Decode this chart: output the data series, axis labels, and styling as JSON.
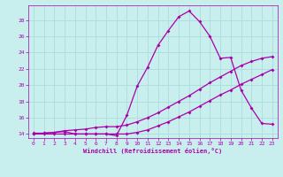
{
  "xlabel": "Windchill (Refroidissement éolien,°C)",
  "bg_color": "#c8eeee",
  "line_color": "#aa00aa",
  "grid_color": "#aadddd",
  "ylim": [
    13.5,
    29.8
  ],
  "xlim": [
    -0.5,
    23.5
  ],
  "yticks": [
    14,
    16,
    18,
    20,
    22,
    24,
    26,
    28
  ],
  "xticks": [
    0,
    1,
    2,
    3,
    4,
    5,
    6,
    7,
    8,
    9,
    10,
    11,
    12,
    13,
    14,
    15,
    16,
    17,
    18,
    19,
    20,
    21,
    22,
    23
  ],
  "line1_x": [
    0,
    1,
    2,
    3,
    4,
    5,
    6,
    7,
    8,
    9,
    10,
    11,
    12,
    13,
    14,
    15,
    16,
    17,
    18,
    19,
    20,
    21,
    22,
    23
  ],
  "line1_y": [
    14.1,
    14.1,
    14.2,
    14.3,
    14.0,
    14.0,
    14.0,
    14.0,
    13.8,
    16.3,
    19.9,
    22.2,
    24.9,
    26.7,
    28.4,
    29.1,
    27.8,
    26.0,
    23.3,
    23.4,
    19.4,
    17.2,
    15.3,
    15.2
  ],
  "line2_x": [
    0,
    1,
    2,
    3,
    4,
    5,
    6,
    7,
    8,
    9,
    10,
    11,
    12,
    13,
    14,
    15,
    16,
    17,
    18,
    19,
    20,
    21,
    22,
    23
  ],
  "line2_y": [
    14.0,
    14.1,
    14.2,
    14.4,
    14.5,
    14.6,
    14.8,
    14.9,
    14.9,
    15.1,
    15.5,
    16.0,
    16.6,
    17.3,
    18.0,
    18.7,
    19.5,
    20.3,
    21.0,
    21.7,
    22.4,
    22.9,
    23.3,
    23.5
  ],
  "line3_x": [
    0,
    1,
    2,
    3,
    4,
    5,
    6,
    7,
    8,
    9,
    10,
    11,
    12,
    13,
    14,
    15,
    16,
    17,
    18,
    19,
    20,
    21,
    22,
    23
  ],
  "line3_y": [
    14.0,
    14.0,
    14.0,
    14.0,
    14.0,
    14.0,
    14.0,
    14.0,
    14.0,
    14.0,
    14.2,
    14.5,
    15.0,
    15.5,
    16.1,
    16.7,
    17.4,
    18.1,
    18.8,
    19.4,
    20.1,
    20.7,
    21.3,
    21.9
  ]
}
